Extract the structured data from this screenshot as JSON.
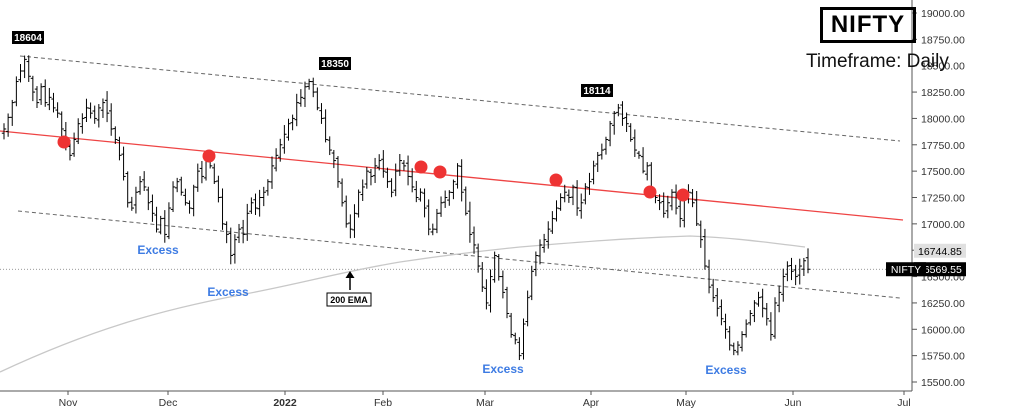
{
  "chart_data": {
    "type": "ohlc",
    "title": "NIFTY",
    "subtitle": "Timeframe: Daily",
    "y_axis": {
      "min": 15500,
      "max": 19000,
      "ticks": [
        "15500.00",
        "15750.00",
        "16000.00",
        "16250.00",
        "16500.00",
        "16750.00",
        "17000.00",
        "17250.00",
        "17500.00",
        "17750.00",
        "18000.00",
        "18250.00",
        "18500.00",
        "18750.00",
        "19000.00"
      ]
    },
    "x_axis": {
      "labels": [
        "Nov",
        "Dec",
        "2022",
        "Feb",
        "Mar",
        "Apr",
        "May",
        "Jun",
        "Jul"
      ],
      "bold_labels": [
        "2022"
      ]
    },
    "price_labels": [
      {
        "name": "ema",
        "text": "16744.85",
        "value": 16744.85,
        "color": "#e0e0e0",
        "text_color": "#000000"
      },
      {
        "name": "last",
        "text": "16569.55",
        "value": 16569.55,
        "color": "#000000",
        "text_color": "#ffffff"
      }
    ],
    "symbol_tag": "NIFTY",
    "peaks": [
      {
        "text": "18604",
        "value": 18604
      },
      {
        "text": "18350",
        "value": 18350
      },
      {
        "text": "18114",
        "value": 18114
      }
    ],
    "annotations": {
      "excess": [
        "Excess",
        "Excess",
        "Excess",
        "Excess"
      ],
      "ema_label": "200 EMA"
    },
    "series_close": [
      17900,
      18010,
      18150,
      18350,
      18450,
      18560,
      18400,
      18250,
      18150,
      18300,
      18150,
      18200,
      18100,
      18050,
      17900,
      17750,
      17650,
      17800,
      17950,
      18000,
      18100,
      18050,
      18000,
      18100,
      18150,
      18050,
      17900,
      17800,
      17650,
      17450,
      17200,
      17150,
      17300,
      17400,
      17350,
      17200,
      17100,
      16950,
      17050,
      16900,
      17150,
      17350,
      17400,
      17300,
      17200,
      17150,
      17350,
      17500,
      17450,
      17600,
      17550,
      17400,
      17250,
      17000,
      16900,
      16700,
      16850,
      16950,
      16900,
      17100,
      17200,
      17150,
      17250,
      17300,
      17400,
      17550,
      17650,
      17750,
      17850,
      17950,
      18000,
      18150,
      18200,
      18300,
      18350,
      18250,
      18100,
      18000,
      17800,
      17700,
      17600,
      17400,
      17200,
      17000,
      16950,
      17100,
      17300,
      17350,
      17500,
      17450,
      17550,
      17600,
      17500,
      17400,
      17300,
      17500,
      17600,
      17550,
      17450,
      17350,
      17250,
      17300,
      17150,
      16950,
      16950,
      17100,
      17200,
      17250,
      17300,
      17400,
      17550,
      17300,
      17100,
      16900,
      16800,
      16600,
      16400,
      16250,
      16500,
      16700,
      16500,
      16350,
      16150,
      15950,
      15900,
      15750,
      16050,
      16300,
      16550,
      16700,
      16800,
      16850,
      16950,
      17050,
      17150,
      17250,
      17300,
      17250,
      17350,
      17150,
      17200,
      17350,
      17400,
      17550,
      17650,
      17700,
      17800,
      17950,
      18050,
      18100,
      18000,
      17950,
      17800,
      17700,
      17650,
      17500,
      17550,
      17300,
      17250,
      17200,
      17100,
      17200,
      17300,
      17150,
      17050,
      17250,
      17300,
      17200,
      17000,
      16850,
      16600,
      16400,
      16300,
      16200,
      16100,
      16000,
      15850,
      15800,
      15850,
      15950,
      16050,
      16150,
      16250,
      16300,
      16200,
      16100,
      15950,
      16250,
      16350,
      16500,
      16600,
      16550,
      16500,
      16600,
      16650,
      16569.55
    ]
  }
}
